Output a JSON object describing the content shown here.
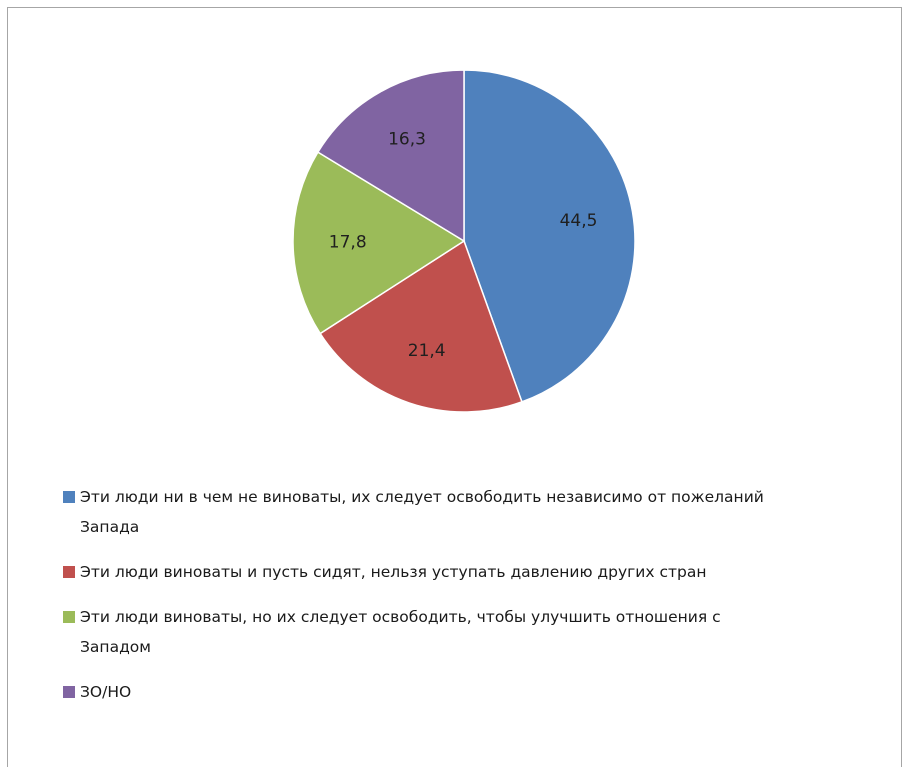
{
  "chart_data": {
    "type": "pie",
    "title": "",
    "categories": [
      "Эти люди ни в чем не виноваты, их следует освободить независимо от пожеланий Запада",
      "Эти люди виноваты и пусть сидят, нельзя уступать давлению других стран",
      "Эти люди виноваты, но их следует освободить, чтобы улучшить отношения с Западом",
      "ЗО/НО"
    ],
    "values": [
      44.5,
      21.4,
      17.8,
      16.3
    ],
    "data_labels": [
      "44,5",
      "21,4",
      "17,8",
      "16,3"
    ],
    "colors": [
      "#4f81bd",
      "#c0504d",
      "#9bbb59",
      "#8064a2"
    ],
    "start_angle": "12 o'clock",
    "direction": "clockwise",
    "legend_position": "bottom"
  }
}
